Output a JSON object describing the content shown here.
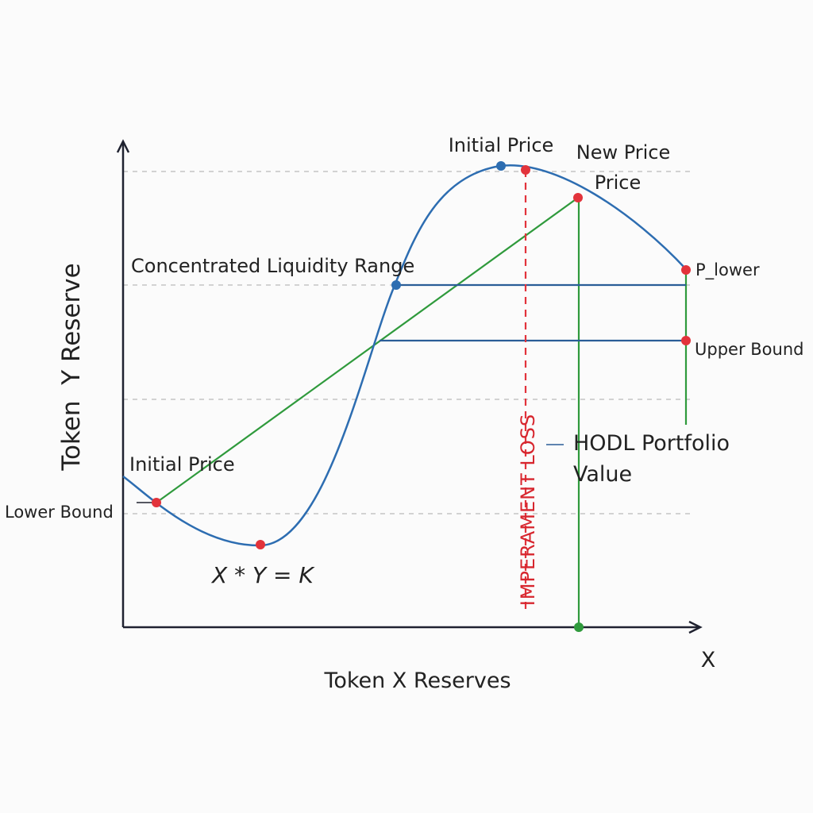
{
  "labels": {
    "y_axis": "Token  Y Reserve",
    "x_axis": "Token X Reserves",
    "x_symbol": "X",
    "initial_price_top": "Initial Price",
    "new_price_line1": "New Price",
    "new_price_line2": "Price",
    "concentrated_range": "Concentrated Liquidity Range",
    "p_lower": "P_lower",
    "upper_bound": "Upper Bound",
    "impermanent_loss": "IMPERAMENT LOSS",
    "hodl_line1": "HODL Portfolio",
    "hodl_line2": "Value",
    "initial_price_left": "Initial Price",
    "lower_bound": "Lower Bound",
    "equation": "X * Y = K"
  },
  "colors": {
    "curve": "#2d6db1",
    "range_lines": "#2a5d97",
    "hodl_lines": "#2f9a3c",
    "loss_marker": "#e2333b",
    "points_red": "#e2333b",
    "points_blue": "#2d6db1",
    "points_green": "#2f9a3c",
    "axes": "#1f2230",
    "grid": "#c4c4c4"
  },
  "grid": "dashed horizontal"
}
